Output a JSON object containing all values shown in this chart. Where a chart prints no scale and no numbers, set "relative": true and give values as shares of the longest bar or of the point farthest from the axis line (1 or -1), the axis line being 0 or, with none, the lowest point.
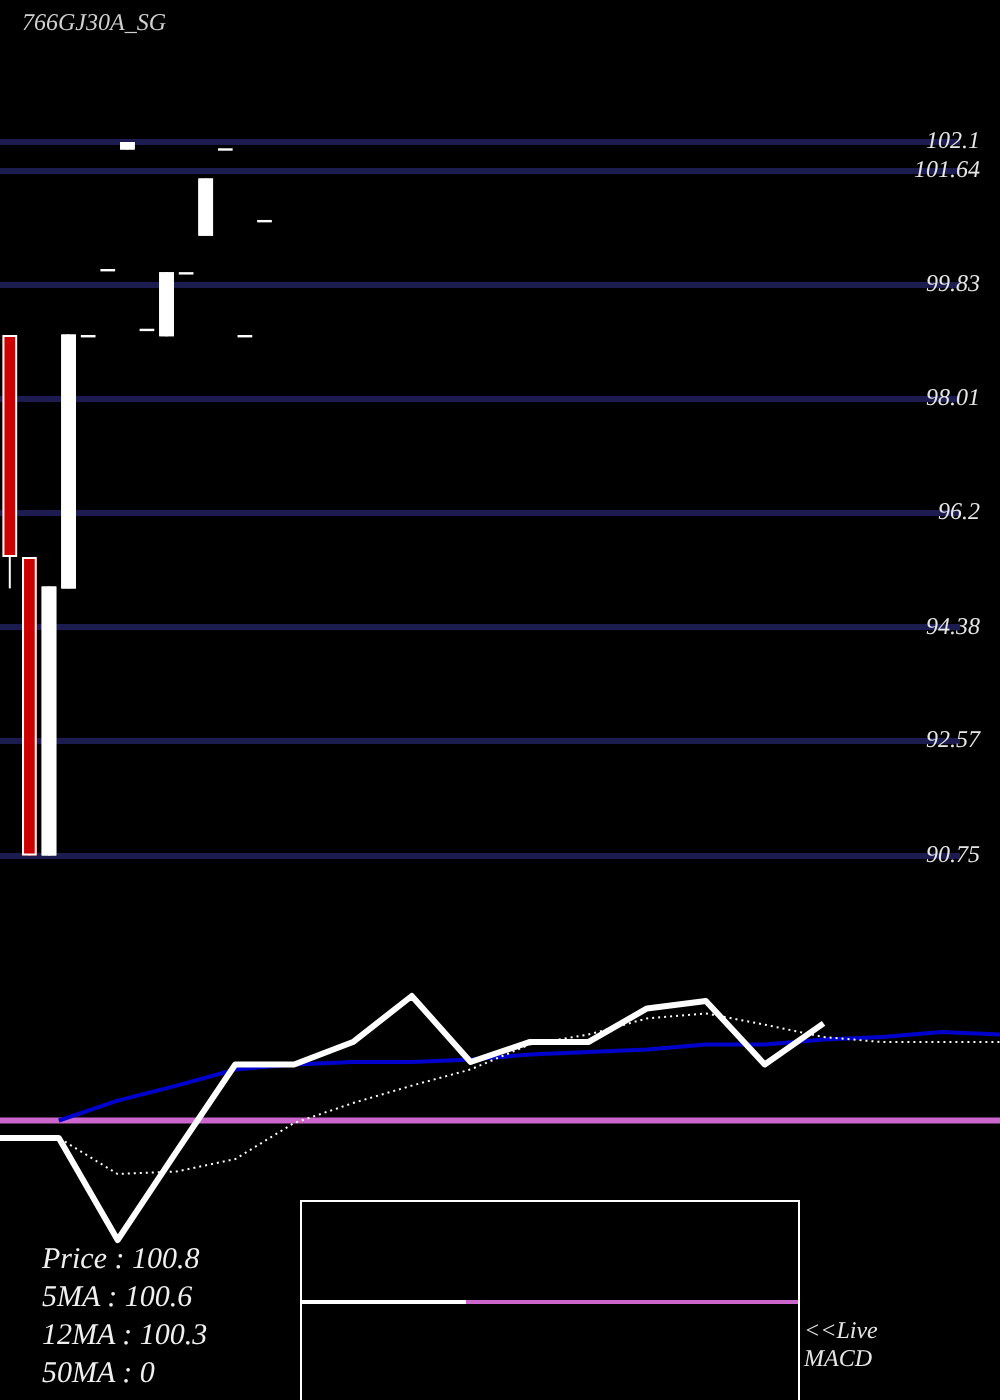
{
  "chart_data": [
    {
      "type": "candlestick",
      "title": "766GJ30A_SG",
      "categories": [
        null,
        null,
        null,
        null,
        null,
        null,
        null,
        null,
        null,
        null,
        null,
        null,
        null,
        null,
        null,
        null,
        null,
        null,
        null,
        null,
        null,
        null,
        null,
        null,
        null,
        null,
        null,
        null,
        null,
        null,
        null,
        null,
        null,
        null,
        null,
        null,
        null,
        null,
        null,
        null,
        null,
        null,
        null,
        null,
        null,
        null,
        null,
        null,
        null
      ],
      "ohlc": [
        [
          99.03,
          99.03,
          95.0,
          95.5
        ],
        [
          95.5,
          95.5,
          90.75,
          90.75
        ],
        [
          90.75,
          95.03,
          90.75,
          95.03
        ],
        [
          95.0,
          99.04,
          95.0,
          99.04
        ],
        [
          99.03,
          99.03,
          99.03,
          99.03
        ],
        [
          100.08,
          100.08,
          100.08,
          100.08
        ],
        [
          101.98,
          102.1,
          101.98,
          102.1
        ],
        [
          99.13,
          99.13,
          99.13,
          99.13
        ],
        [
          99.01,
          100.03,
          99.01,
          100.03
        ],
        [
          100.03,
          100.03,
          100.03,
          100.03
        ],
        [
          100.61,
          101.52,
          100.61,
          101.52
        ],
        [
          102.0,
          102.0,
          102.0,
          102.0
        ],
        [
          99.03,
          99.03,
          99.03,
          99.03
        ],
        [
          100.86,
          100.86,
          100.86,
          100.86
        ],
        null,
        null,
        null,
        null,
        null,
        null,
        null,
        null,
        null,
        null,
        null,
        null,
        null,
        null,
        null,
        null,
        null,
        null,
        null,
        null,
        null,
        null,
        null,
        null,
        null,
        null,
        null,
        null,
        null,
        null,
        null,
        null,
        null,
        null,
        null
      ],
      "colors": [
        "#cc0000",
        "#cc0000",
        "#ffffff",
        "#ffffff",
        "#ffffff",
        "#ffffff",
        "#ffffff",
        "#ffffff",
        "#ffffff",
        "#ffffff",
        "#ffffff",
        "#ffffff",
        "#ffffff",
        "#ffffff",
        null,
        null,
        null,
        null,
        null,
        null,
        null,
        null,
        null,
        null,
        null,
        null,
        null,
        null,
        null,
        null,
        null,
        null,
        null,
        null,
        null,
        null,
        null,
        null,
        null,
        null,
        null,
        null,
        null,
        null,
        null,
        null,
        null,
        null,
        null
      ],
      "ylim": [
        90.75,
        102.1
      ],
      "yticks": [
        90.75,
        92.57,
        94.38,
        96.2,
        98.01,
        99.83,
        101.64,
        102.1
      ],
      "grid": "y",
      "tick_labels": "y"
    },
    {
      "type": "line",
      "relative": true,
      "categories": [
        null,
        null,
        null,
        null,
        null,
        null,
        null,
        null,
        null,
        null,
        null,
        null,
        null,
        null,
        null,
        null,
        null,
        null
      ],
      "series": [
        {
          "color": "#ffffff",
          "line_style": "solid",
          "values": [
            -0.14,
            -0.14,
            -0.96,
            -0.25,
            0.45,
            0.45,
            0.63,
            1,
            0.47,
            0.63,
            0.63,
            0.9,
            0.96,
            0.45,
            0.78,
            null,
            null,
            null
          ]
        },
        {
          "color": "#ffffff",
          "line_style": "dotted",
          "values": [
            -0.14,
            -0.14,
            -0.43,
            -0.41,
            -0.31,
            -0.02,
            0.14,
            0.28,
            0.41,
            0.61,
            0.69,
            0.82,
            0.86,
            0.77,
            0.67,
            0.63,
            0.63,
            0.63
          ]
        },
        {
          "color": "#0000cc",
          "line_style": "solid",
          "values": [
            null,
            0.0,
            0.16,
            0.28,
            0.41,
            0.45,
            0.47,
            0.47,
            0.49,
            0.53,
            0.55,
            0.57,
            0.61,
            0.61,
            0.65,
            0.67,
            0.71,
            0.69
          ]
        }
      ],
      "ref_lines": [
        {
          "axis": "y",
          "value": 0,
          "color": "#cc66cc"
        }
      ],
      "marker": "none",
      "tick_labels": false,
      "annotations": [
        "Price : 100.8",
        "5MA : 100.6",
        "12MA : 100.3",
        "50MA : 0"
      ]
    },
    {
      "type": "other",
      "annotations": [
        "<<Live MACD"
      ]
    }
  ]
}
